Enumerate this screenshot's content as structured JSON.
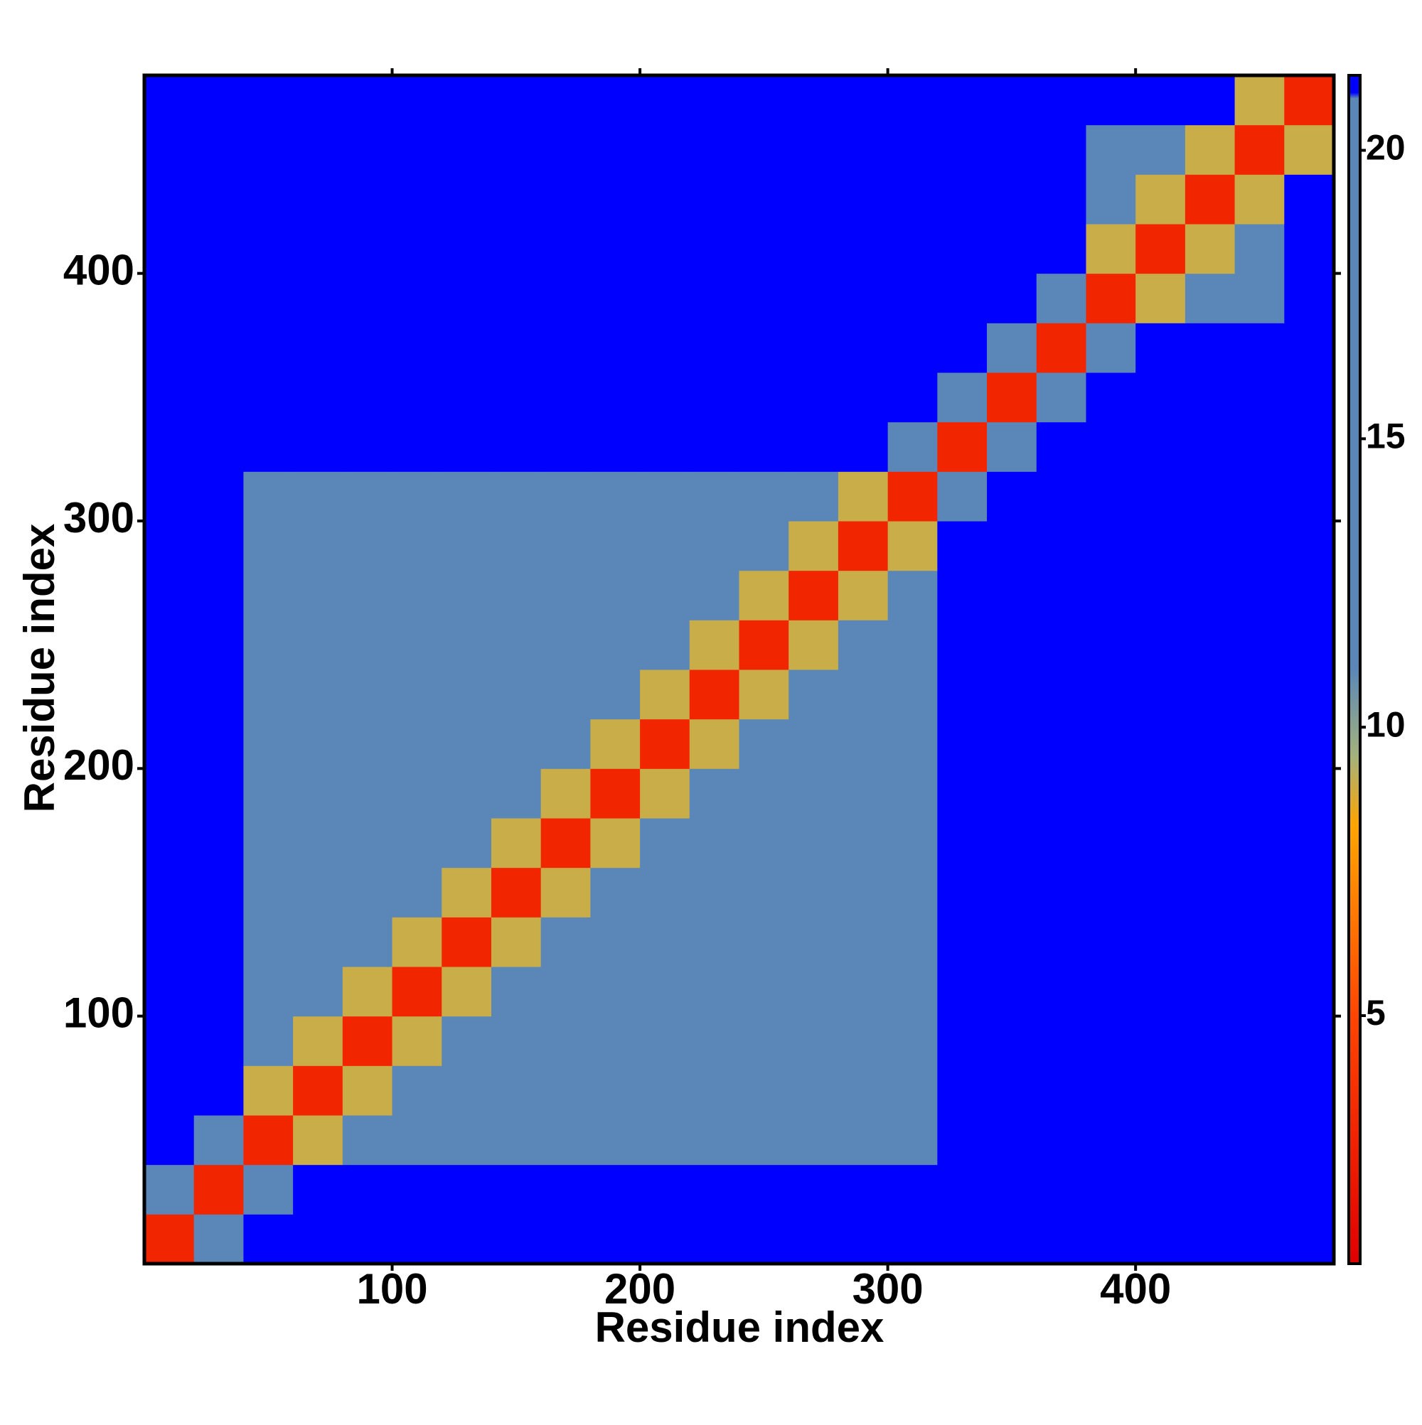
{
  "chart_data": {
    "type": "heatmap",
    "xlabel": "Residue index",
    "ylabel": "Residue index",
    "xbins": [
      0,
      20,
      40,
      60,
      80,
      100,
      120,
      140,
      160,
      180,
      200,
      220,
      240,
      260,
      280,
      300,
      320,
      340,
      360,
      380,
      400,
      420,
      440,
      460,
      480
    ],
    "ybins": [
      0,
      20,
      40,
      60,
      80,
      100,
      120,
      140,
      160,
      180,
      200,
      220,
      240,
      260,
      280,
      300,
      320,
      340,
      360,
      380,
      400,
      420,
      440,
      460,
      480
    ],
    "z": [
      [
        3,
        18,
        21,
        21,
        21,
        21,
        21,
        21,
        21,
        21,
        21,
        21,
        21,
        21,
        21,
        21,
        21,
        21,
        21,
        21,
        21,
        21,
        21,
        21
      ],
      [
        18,
        3,
        18,
        21,
        21,
        21,
        21,
        21,
        21,
        21,
        21,
        21,
        21,
        21,
        21,
        21,
        21,
        21,
        21,
        21,
        21,
        21,
        21,
        21
      ],
      [
        21,
        18,
        3,
        9,
        13,
        13,
        16,
        16,
        16,
        19,
        19,
        19,
        19,
        19,
        19,
        19,
        21,
        21,
        21,
        21,
        21,
        21,
        21,
        21
      ],
      [
        21,
        21,
        9,
        3,
        9,
        13,
        13,
        16,
        16,
        16,
        19,
        19,
        19,
        19,
        19,
        19,
        21,
        21,
        21,
        21,
        21,
        21,
        21,
        21
      ],
      [
        21,
        21,
        13,
        9,
        3,
        9,
        13,
        13,
        16,
        16,
        16,
        19,
        19,
        19,
        19,
        19,
        21,
        21,
        21,
        21,
        21,
        21,
        21,
        21
      ],
      [
        21,
        21,
        13,
        13,
        9,
        3,
        9,
        13,
        13,
        16,
        16,
        19,
        19,
        19,
        19,
        19,
        21,
        21,
        21,
        21,
        21,
        21,
        21,
        21
      ],
      [
        21,
        21,
        16,
        13,
        13,
        9,
        3,
        9,
        13,
        13,
        16,
        19,
        19,
        19,
        19,
        19,
        21,
        21,
        21,
        21,
        21,
        21,
        21,
        21
      ],
      [
        21,
        21,
        16,
        16,
        13,
        13,
        9,
        3,
        9,
        13,
        13,
        19,
        19,
        19,
        19,
        19,
        21,
        21,
        21,
        21,
        21,
        21,
        21,
        21
      ],
      [
        21,
        21,
        16,
        16,
        16,
        13,
        13,
        9,
        3,
        9,
        13,
        19,
        19,
        19,
        19,
        19,
        21,
        21,
        21,
        21,
        21,
        21,
        21,
        21
      ],
      [
        21,
        21,
        19,
        16,
        16,
        16,
        13,
        13,
        9,
        3,
        9,
        19,
        19,
        19,
        19,
        19,
        21,
        21,
        21,
        21,
        21,
        21,
        21,
        21
      ],
      [
        21,
        21,
        19,
        19,
        16,
        16,
        16,
        13,
        13,
        9,
        3,
        9,
        12,
        12,
        12,
        12,
        21,
        21,
        21,
        21,
        21,
        21,
        21,
        21
      ],
      [
        21,
        21,
        19,
        19,
        19,
        19,
        19,
        19,
        19,
        19,
        9,
        3,
        9,
        12,
        12,
        12,
        21,
        21,
        21,
        21,
        21,
        21,
        21,
        21
      ],
      [
        21,
        21,
        19,
        19,
        19,
        19,
        19,
        19,
        19,
        19,
        12,
        9,
        3,
        9,
        12,
        12,
        21,
        21,
        21,
        21,
        21,
        21,
        21,
        21
      ],
      [
        21,
        21,
        19,
        19,
        19,
        19,
        19,
        19,
        19,
        19,
        12,
        12,
        9,
        3,
        9,
        12,
        21,
        21,
        21,
        21,
        21,
        21,
        21,
        21
      ],
      [
        21,
        21,
        19,
        19,
        19,
        19,
        19,
        19,
        19,
        19,
        12,
        12,
        12,
        9,
        3,
        9,
        21,
        21,
        21,
        21,
        21,
        21,
        21,
        21
      ],
      [
        21,
        21,
        19,
        19,
        19,
        19,
        19,
        19,
        19,
        19,
        12,
        12,
        12,
        12,
        9,
        3,
        18,
        21,
        21,
        21,
        21,
        21,
        21,
        21
      ],
      [
        21,
        21,
        21,
        21,
        21,
        21,
        21,
        21,
        21,
        21,
        21,
        21,
        21,
        21,
        21,
        18,
        3,
        18,
        21,
        21,
        21,
        21,
        21,
        21
      ],
      [
        21,
        21,
        21,
        21,
        21,
        21,
        21,
        21,
        21,
        21,
        21,
        21,
        21,
        21,
        21,
        21,
        18,
        3,
        18,
        21,
        21,
        21,
        21,
        21
      ],
      [
        21,
        21,
        21,
        21,
        21,
        21,
        21,
        21,
        21,
        21,
        21,
        21,
        21,
        21,
        21,
        21,
        21,
        18,
        3,
        18,
        21,
        21,
        21,
        21
      ],
      [
        21,
        21,
        21,
        21,
        21,
        21,
        21,
        21,
        21,
        21,
        21,
        21,
        21,
        21,
        21,
        21,
        21,
        21,
        18,
        3,
        9,
        14,
        14,
        21
      ],
      [
        21,
        21,
        21,
        21,
        21,
        21,
        21,
        21,
        21,
        21,
        21,
        21,
        21,
        21,
        21,
        21,
        21,
        21,
        21,
        9,
        3,
        9,
        14,
        21
      ],
      [
        21,
        21,
        21,
        21,
        21,
        21,
        21,
        21,
        21,
        21,
        21,
        21,
        21,
        21,
        21,
        21,
        21,
        21,
        21,
        14,
        9,
        3,
        9,
        21
      ],
      [
        21,
        21,
        21,
        21,
        21,
        21,
        21,
        21,
        21,
        21,
        21,
        21,
        21,
        21,
        21,
        21,
        21,
        21,
        21,
        14,
        14,
        9,
        3,
        9
      ],
      [
        21,
        21,
        21,
        21,
        21,
        21,
        21,
        21,
        21,
        21,
        21,
        21,
        21,
        21,
        21,
        21,
        21,
        21,
        21,
        21,
        21,
        21,
        9,
        3
      ]
    ],
    "xlim": [
      0,
      480
    ],
    "ylim": [
      0,
      480
    ],
    "xticks": [
      100,
      200,
      300,
      400
    ],
    "yticks": [
      100,
      200,
      300,
      400
    ],
    "clim": [
      0.7,
      21.3
    ],
    "cticks": [
      5,
      10,
      15,
      20
    ],
    "colorscale": [
      [
        0.7,
        "#e00000"
      ],
      [
        5,
        "#ff4500"
      ],
      [
        8.3,
        "#ffa500"
      ],
      [
        9.5,
        "#a3b27c"
      ],
      [
        11,
        "#5b87b8"
      ],
      [
        20.9,
        "#5b87b8"
      ],
      [
        21,
        "#0000ff"
      ]
    ]
  }
}
